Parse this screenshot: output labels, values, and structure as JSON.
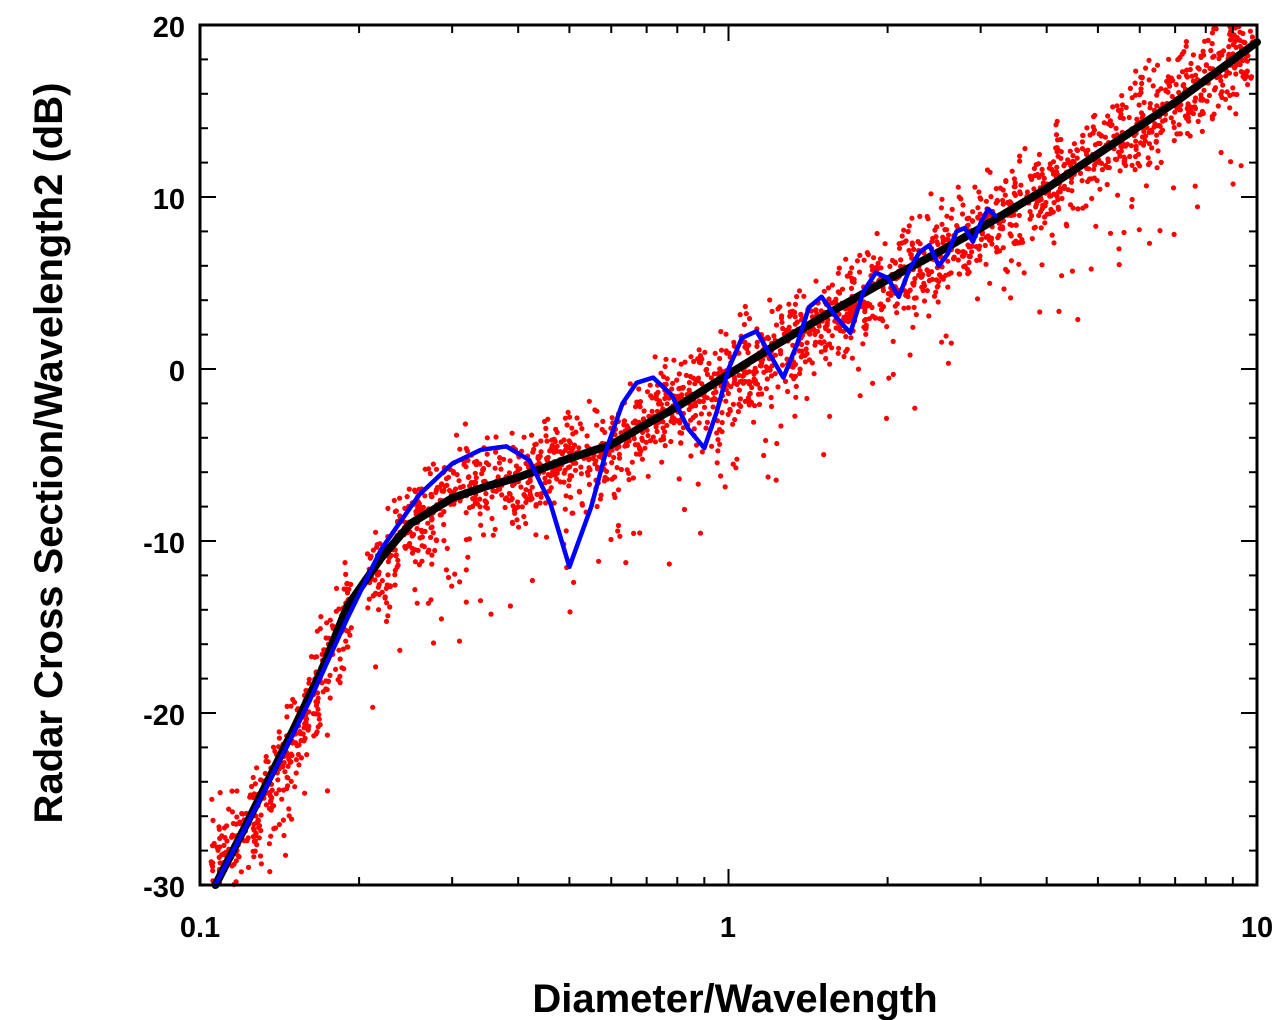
{
  "chart_data": {
    "type": "scatter",
    "xlabel": "Diameter/Wavelength",
    "ylabel": "Radar Cross Section/Wavelength2 (dB)",
    "xscale": "log",
    "xlim": [
      0.1,
      10
    ],
    "ylim": [
      -30,
      20
    ],
    "x_ticks": [
      "0.1",
      "1",
      "10"
    ],
    "y_ticks": [
      "20",
      "10",
      "0",
      "-10",
      "-20",
      "-30"
    ],
    "grid": false,
    "legend": "none",
    "colors": {
      "scatter": "#ff0000",
      "trend": "#000000",
      "theory": "#0000ff"
    },
    "series": [
      {
        "kind": "scatter-cloud",
        "color": "#ff0000",
        "approx_points": 2600,
        "trend_x": [
          0.105,
          0.12,
          0.15,
          0.19,
          0.25,
          0.3,
          0.4,
          0.5,
          0.6,
          0.8,
          1.0,
          1.5,
          2.0,
          3.0,
          5.0,
          10.0
        ],
        "trend_y": [
          -29,
          -27,
          -22,
          -14,
          -9,
          -7.5,
          -6.5,
          -5.5,
          -4.5,
          -2,
          -0.5,
          2.5,
          5,
          8,
          12.5,
          19
        ],
        "spread_db": 2.5
      },
      {
        "kind": "line",
        "color": "#000000",
        "x": [
          0.107,
          0.12,
          0.15,
          0.17,
          0.19,
          0.22,
          0.25,
          0.3,
          0.35,
          0.4,
          0.5,
          0.6,
          0.7,
          0.8,
          1.0,
          1.2,
          1.5,
          2.0,
          2.5,
          3.0,
          4.0,
          5.0,
          7.0,
          10.0
        ],
        "y": [
          -30,
          -27,
          -21,
          -17.5,
          -13.8,
          -11,
          -9,
          -7.5,
          -6.8,
          -6.3,
          -5.2,
          -4.4,
          -3.2,
          -2.2,
          -0.3,
          1.2,
          3.0,
          5.2,
          6.8,
          8.2,
          10.5,
          12.5,
          15.5,
          19
        ]
      },
      {
        "kind": "line",
        "color": "#0000ff",
        "x": [
          0.107,
          0.13,
          0.16,
          0.19,
          0.22,
          0.26,
          0.3,
          0.34,
          0.38,
          0.42,
          0.46,
          0.5,
          0.55,
          0.59,
          0.63,
          0.67,
          0.72,
          0.78,
          0.84,
          0.9,
          0.95,
          1.0,
          1.06,
          1.13,
          1.2,
          1.27,
          1.35,
          1.42,
          1.5,
          1.6,
          1.7,
          1.8,
          1.9,
          2.0,
          2.1,
          2.2,
          2.3,
          2.4,
          2.5,
          2.6,
          2.7,
          2.8,
          2.9,
          3.0,
          3.1,
          3.2
        ],
        "y": [
          -30,
          -25,
          -19.5,
          -14.5,
          -10.5,
          -7.3,
          -5.5,
          -4.7,
          -4.5,
          -5.3,
          -7.8,
          -11.5,
          -8.0,
          -4.5,
          -2.0,
          -0.8,
          -0.5,
          -1.5,
          -3.5,
          -4.6,
          -2.5,
          0.0,
          1.8,
          2.2,
          0.8,
          -0.5,
          1.5,
          3.6,
          4.2,
          3.0,
          2.1,
          4.5,
          5.6,
          5.3,
          4.2,
          5.8,
          6.8,
          7.2,
          6.0,
          6.7,
          8.0,
          8.2,
          7.4,
          8.5,
          9.3,
          8.9
        ]
      }
    ]
  }
}
